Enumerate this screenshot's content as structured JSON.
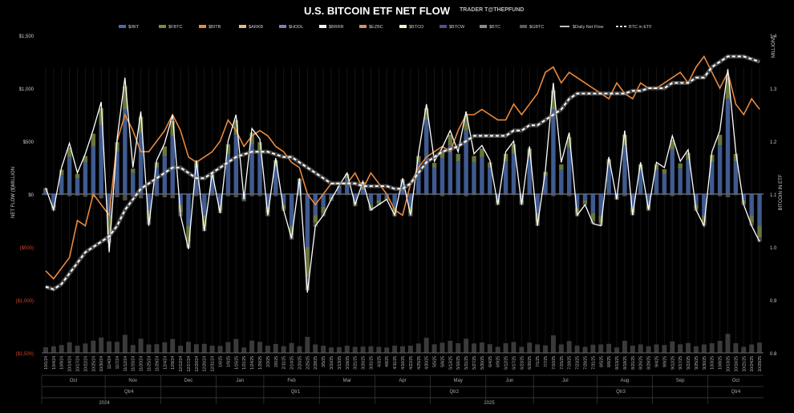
{
  "chart_data": {
    "type": "bar",
    "title": "U.S. BITCOIN ETF NET FLOW",
    "subtitle": "TRADER T@THEPFUND",
    "ylabel": "NET FLOW ($)MILLION",
    "y2label_top": "MILLIONS",
    "y2label": "BITCOIN IN ETF",
    "ylim": [
      -1500,
      1500
    ],
    "y2lim": [
      0.8,
      1.4
    ],
    "yticks": [
      "$1,500",
      "$1,000",
      "$500",
      "$0",
      "($500)",
      "($1,000)",
      "($1,500)"
    ],
    "yticks_values": [
      1500,
      1000,
      500,
      0,
      -500,
      -1000,
      -1500
    ],
    "y2ticks": [
      "1.4",
      "1.3",
      "1.2",
      "1.1",
      "1.0",
      "0.9",
      "0.8"
    ],
    "y2ticks_values": [
      1.4,
      1.3,
      1.2,
      1.1,
      1.0,
      0.9,
      0.8
    ],
    "legend_position": "top",
    "legend": [
      {
        "label": "$IBIT",
        "color": "#4a6aa8",
        "kind": "bar"
      },
      {
        "label": "$FBTC",
        "color": "#7a8a48",
        "kind": "bar"
      },
      {
        "label": "$BITB",
        "color": "#e8893e",
        "kind": "bar"
      },
      {
        "label": "$ARKB",
        "color": "#e0b890",
        "kind": "bar"
      },
      {
        "label": "$HODL",
        "color": "#8878b8",
        "kind": "bar"
      },
      {
        "label": "$BRRR",
        "color": "#f0f0f0",
        "kind": "bar"
      },
      {
        "label": "$EZBC",
        "color": "#d09070",
        "kind": "bar"
      },
      {
        "label": "$BTCO",
        "color": "#eeeecc",
        "kind": "bar"
      },
      {
        "label": "$BTCW",
        "color": "#5a4a88",
        "kind": "bar"
      },
      {
        "label": "$BTC",
        "color": "#8a8a8a",
        "kind": "bar"
      },
      {
        "label": "$GBTC",
        "color": "#5a5a5a",
        "kind": "bar"
      },
      {
        "label": "$Daily Net Flow",
        "color": "#ffffff",
        "kind": "line"
      },
      {
        "label": "BTC in ETF",
        "color": "#dddddd",
        "kind": "dashed"
      }
    ],
    "x_dates": [
      "10/1/24",
      "10/4/24",
      "10/9/24",
      "10/14/24",
      "10/17/24",
      "10/22/24",
      "10/25/24",
      "10/30/24",
      "11/4/24",
      "11/7/24",
      "11/12/24",
      "11/15/24",
      "11/20/24",
      "11/25/24",
      "11/29/24",
      "12/4/24",
      "12/9/24",
      "12/12/24",
      "12/17/24",
      "12/20/24",
      "12/26/24",
      "12/31/24",
      "1/6/25",
      "1/9/25",
      "1/15/25",
      "1/21/25",
      "1/24/25",
      "1/29/25",
      "2/3/25",
      "2/6/25",
      "2/11/25",
      "2/14/25",
      "2/20/25",
      "2/25/25",
      "2/28/25",
      "3/5/25",
      "3/10/25",
      "3/13/25",
      "3/18/25",
      "3/21/25",
      "3/26/25",
      "3/31/25",
      "4/3/25",
      "4/8/25",
      "4/11/25",
      "4/16/25",
      "4/22/25",
      "4/25/25",
      "4/30/25",
      "5/5/25",
      "5/8/25",
      "5/13/25",
      "5/16/25",
      "5/21/25",
      "5/27/25",
      "5/30/25",
      "6/4/25",
      "6/9/25",
      "6/12/25",
      "6/17/25",
      "6/23/25",
      "6/26/25",
      "7/1/25",
      "7/7/25",
      "7/10/25",
      "7/15/25",
      "7/18/25",
      "7/23/25",
      "7/28/25",
      "7/31/25",
      "8/5/25",
      "8/8/25",
      "8/13/25",
      "8/18/25",
      "8/21/25",
      "8/26/25",
      "8/29/25",
      "9/4/25",
      "9/9/25",
      "9/12/25",
      "9/17/25",
      "9/22/25",
      "9/25/25",
      "9/30/25",
      "10/3/25",
      "10/8/25",
      "10/13/25",
      "10/16/25",
      "10/21/25",
      "10/24/25",
      "10/29/25"
    ],
    "x_months": [
      "Oct",
      "Nov",
      "Dec",
      "Jan",
      "Feb",
      "Mar",
      "Apr",
      "May",
      "Jun",
      "Jul",
      "Aug",
      "Sep",
      "Oct"
    ],
    "x_quarters": [
      "Qtr4",
      "Qtr1",
      "Qtr2",
      "Qtr3",
      "Qtr4"
    ],
    "x_years": [
      "2024",
      "2025"
    ],
    "series": [
      {
        "name": "$Daily Net Flow",
        "values": [
          60,
          -150,
          250,
          480,
          200,
          380,
          610,
          870,
          -550,
          520,
          1100,
          250,
          780,
          -300,
          320,
          480,
          750,
          -200,
          -520,
          320,
          -350,
          200,
          -180,
          500,
          750,
          -50,
          620,
          520,
          -200,
          340,
          -150,
          -420,
          150,
          -930,
          -300,
          -200,
          -50,
          80,
          200,
          -100,
          120,
          -150,
          -100,
          -50,
          -200,
          150,
          -200,
          380,
          850,
          310,
          440,
          600,
          400,
          780,
          380,
          460,
          320,
          -100,
          400,
          500,
          -100,
          450,
          -300,
          220,
          1050,
          300,
          580,
          -200,
          -100,
          -280,
          -300,
          350,
          -50,
          600,
          -200,
          300,
          -150,
          300,
          250,
          550,
          310,
          420,
          -150,
          -300,
          400,
          600,
          1180,
          400,
          -100,
          -300,
          -450
        ]
      },
      {
        "name": "BTC in ETF",
        "values": [
          0.925,
          0.92,
          0.93,
          0.95,
          0.97,
          0.99,
          1.0,
          1.01,
          1.02,
          1.04,
          1.07,
          1.09,
          1.11,
          1.12,
          1.13,
          1.14,
          1.15,
          1.15,
          1.14,
          1.13,
          1.13,
          1.14,
          1.15,
          1.16,
          1.17,
          1.175,
          1.18,
          1.18,
          1.18,
          1.175,
          1.17,
          1.17,
          1.16,
          1.15,
          1.14,
          1.13,
          1.12,
          1.12,
          1.12,
          1.12,
          1.115,
          1.115,
          1.115,
          1.115,
          1.11,
          1.11,
          1.12,
          1.14,
          1.16,
          1.17,
          1.18,
          1.185,
          1.19,
          1.2,
          1.21,
          1.21,
          1.21,
          1.21,
          1.21,
          1.22,
          1.22,
          1.23,
          1.23,
          1.24,
          1.25,
          1.26,
          1.28,
          1.29,
          1.29,
          1.29,
          1.29,
          1.29,
          1.29,
          1.29,
          1.295,
          1.295,
          1.3,
          1.3,
          1.3,
          1.31,
          1.31,
          1.31,
          1.32,
          1.32,
          1.34,
          1.35,
          1.36,
          1.36,
          1.36,
          1.355,
          1.35
        ]
      },
      {
        "name": "$BITB",
        "values": [
          0.955,
          0.94,
          0.96,
          0.98,
          1.05,
          1.04,
          1.1,
          1.08,
          1.06,
          1.2,
          1.25,
          1.22,
          1.18,
          1.18,
          1.2,
          1.22,
          1.25,
          1.22,
          1.17,
          1.16,
          1.17,
          1.18,
          1.2,
          1.24,
          1.22,
          1.19,
          1.21,
          1.22,
          1.21,
          1.19,
          1.18,
          1.16,
          1.15,
          1.1,
          1.08,
          1.1,
          1.12,
          1.12,
          1.12,
          1.14,
          1.11,
          1.14,
          1.12,
          1.1,
          1.07,
          1.06,
          1.12,
          1.15,
          1.17,
          1.18,
          1.19,
          1.18,
          1.22,
          1.25,
          1.25,
          1.26,
          1.25,
          1.24,
          1.24,
          1.27,
          1.25,
          1.27,
          1.29,
          1.33,
          1.34,
          1.31,
          1.33,
          1.32,
          1.31,
          1.3,
          1.29,
          1.28,
          1.31,
          1.29,
          1.28,
          1.31,
          1.3,
          1.3,
          1.31,
          1.32,
          1.33,
          1.31,
          1.34,
          1.36,
          1.33,
          1.3,
          1.33,
          1.27,
          1.25,
          1.28,
          1.26
        ]
      },
      {
        "name": "$IBIT",
        "values": [
          40,
          -100,
          180,
          350,
          150,
          300,
          450,
          650,
          -200,
          400,
          800,
          200,
          580,
          -150,
          250,
          360,
          550,
          -100,
          -300,
          250,
          -200,
          150,
          -100,
          380,
          560,
          -30,
          470,
          390,
          -120,
          260,
          -100,
          -300,
          120,
          -500,
          -200,
          -120,
          -30,
          60,
          150,
          -70,
          90,
          -100,
          -60,
          -30,
          -120,
          110,
          -120,
          300,
          700,
          250,
          340,
          460,
          310,
          600,
          300,
          350,
          250,
          -60,
          310,
          380,
          -60,
          350,
          -180,
          170,
          800,
          230,
          440,
          -130,
          -60,
          -180,
          -200,
          270,
          -30,
          460,
          -130,
          230,
          -100,
          230,
          190,
          420,
          240,
          320,
          -100,
          -200,
          300,
          460,
          900,
          310,
          -60,
          -200,
          -300
        ]
      },
      {
        "name": "$FBTC",
        "values": [
          15,
          -30,
          50,
          90,
          40,
          60,
          120,
          160,
          -180,
          90,
          220,
          40,
          150,
          -90,
          50,
          90,
          140,
          -70,
          -150,
          50,
          -100,
          40,
          -50,
          90,
          140,
          -20,
          110,
          100,
          -60,
          60,
          -40,
          -90,
          25,
          -280,
          -70,
          -60,
          -20,
          15,
          40,
          -25,
          25,
          -40,
          -30,
          -15,
          -60,
          30,
          -60,
          60,
          110,
          45,
          70,
          100,
          70,
          140,
          60,
          80,
          50,
          -30,
          70,
          90,
          -30,
          80,
          -80,
          40,
          180,
          50,
          100,
          -50,
          -30,
          -70,
          -70,
          60,
          -15,
          100,
          -50,
          50,
          -40,
          50,
          45,
          90,
          50,
          70,
          -40,
          -70,
          70,
          100,
          200,
          70,
          -30,
          -70,
          -110
        ]
      },
      {
        "name": "$GBTC",
        "values": [
          -10,
          -25,
          -10,
          -20,
          -15,
          -25,
          -30,
          -40,
          -80,
          -30,
          -60,
          -25,
          -40,
          -50,
          -20,
          -30,
          -40,
          -40,
          -60,
          -20,
          -50,
          -15,
          -30,
          -20,
          -30,
          -20,
          -20,
          -20,
          -30,
          -20,
          -20,
          -40,
          -15,
          -130,
          -40,
          -30,
          -15,
          -10,
          -10,
          -20,
          -10,
          -20,
          -15,
          -15,
          -30,
          -10,
          -30,
          -10,
          -10,
          -10,
          -20,
          -10,
          -10,
          -20,
          -10,
          -10,
          -10,
          -15,
          -10,
          -10,
          -15,
          -10,
          -40,
          -10,
          -20,
          -10,
          -20,
          -30,
          -15,
          -30,
          -30,
          -10,
          -10,
          -20,
          -20,
          -10,
          -20,
          -10,
          -10,
          -20,
          -10,
          -10,
          -20,
          -30,
          -10,
          -20,
          -30,
          -10,
          -15,
          -30,
          -40
        ]
      }
    ]
  }
}
